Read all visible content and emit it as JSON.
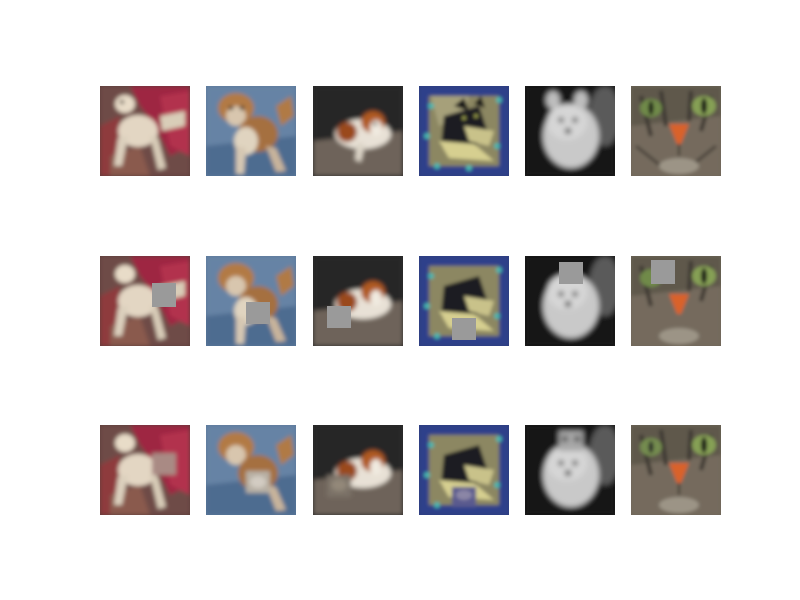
{
  "figure": {
    "rows": [
      {
        "kind": "original",
        "tiles": [
          {
            "subject": "chihuahua-on-red-chair",
            "patch": false
          },
          {
            "subject": "chihuahua-on-blue-blanket",
            "patch": false
          },
          {
            "subject": "papillon-dark-background",
            "patch": false
          },
          {
            "subject": "black-cat-blue-frame",
            "patch": false
          },
          {
            "subject": "white-pomeranian-grayscale",
            "patch": false
          },
          {
            "subject": "tabby-cat-closeup",
            "patch": false
          }
        ]
      },
      {
        "kind": "gray-patch-occlusion",
        "tiles": [
          {
            "subject": "chihuahua-on-red-chair",
            "patch": true,
            "patch_color": "#9a9a9a"
          },
          {
            "subject": "chihuahua-on-blue-blanket",
            "patch": true,
            "patch_color": "#9a9a9a"
          },
          {
            "subject": "papillon-dark-background",
            "patch": true,
            "patch_color": "#9a9a9a"
          },
          {
            "subject": "black-cat-blue-frame",
            "patch": true,
            "patch_color": "#9a9a9a"
          },
          {
            "subject": "white-pomeranian-grayscale",
            "patch": true,
            "patch_color": "#9a9a9a"
          },
          {
            "subject": "tabby-cat-closeup",
            "patch": true,
            "patch_color": "#9a9a9a"
          }
        ]
      },
      {
        "kind": "inpainted-patch",
        "tiles": [
          {
            "subject": "chihuahua-on-red-chair",
            "patch": false
          },
          {
            "subject": "chihuahua-on-blue-blanket",
            "patch": false
          },
          {
            "subject": "papillon-dark-background",
            "patch": false
          },
          {
            "subject": "black-cat-blue-frame",
            "patch": false
          },
          {
            "subject": "white-pomeranian-grayscale",
            "patch": false
          },
          {
            "subject": "tabby-cat-closeup",
            "patch": false
          }
        ]
      }
    ]
  }
}
